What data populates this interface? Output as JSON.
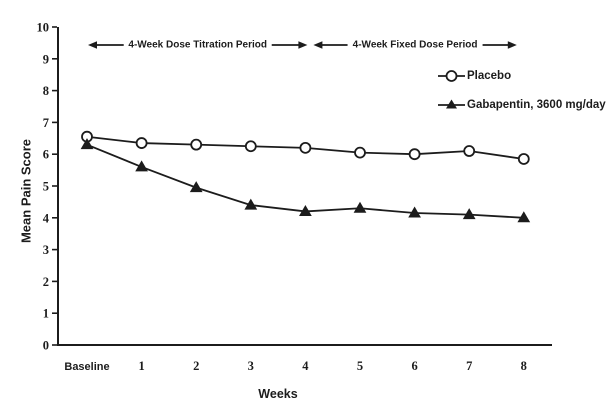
{
  "figure": {
    "background": "#ffffff",
    "ink_color": "#1c1c1c"
  },
  "chart_data": {
    "type": "line",
    "title": "",
    "xlabel": "Weeks",
    "ylabel": "Mean Pain Score",
    "categories": [
      "Baseline",
      "1",
      "2",
      "3",
      "4",
      "5",
      "6",
      "7",
      "8"
    ],
    "y_ticks": [
      0,
      1,
      2,
      3,
      4,
      5,
      6,
      7,
      8,
      9,
      10
    ],
    "ylim": [
      0,
      10
    ],
    "grid": false,
    "legend_position": "upper-right-inside",
    "series": [
      {
        "name": "Placebo",
        "marker": "open-circle",
        "color": "#1c1c1c",
        "values": [
          6.55,
          6.35,
          6.3,
          6.25,
          6.2,
          6.05,
          6.0,
          6.1,
          5.85
        ]
      },
      {
        "name": "Gabapentin, 3600 mg/day",
        "marker": "filled-triangle",
        "color": "#1c1c1c",
        "values": [
          6.3,
          5.6,
          4.95,
          4.4,
          4.2,
          4.3,
          4.15,
          4.1,
          4.0
        ]
      }
    ],
    "annotations": [
      {
        "label": "4-Week Dose Titration Period",
        "span": [
          "Baseline",
          "4"
        ],
        "style": "double-arrow"
      },
      {
        "label": "4-Week Fixed Dose Period",
        "span": [
          "4",
          "8"
        ],
        "style": "double-arrow"
      }
    ]
  }
}
